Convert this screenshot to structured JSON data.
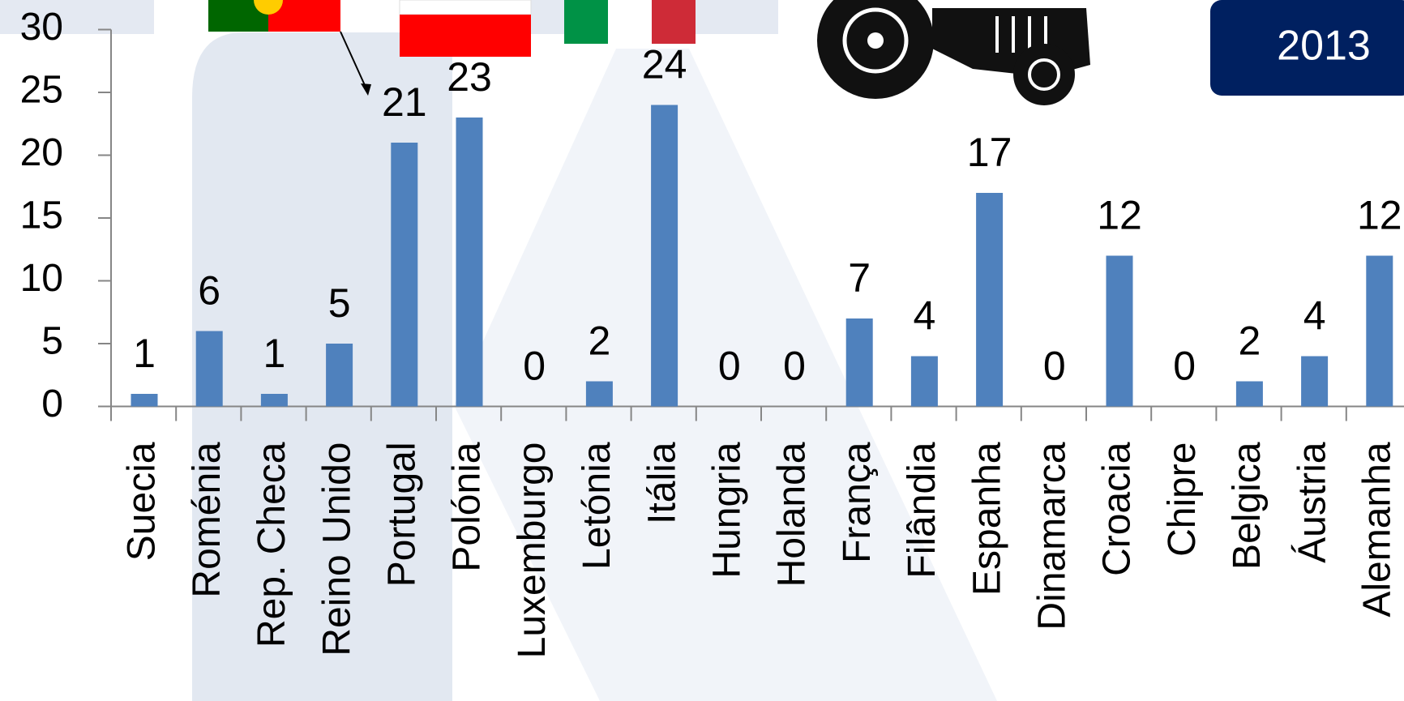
{
  "chart_data": {
    "type": "bar",
    "title": "2013",
    "categories": [
      "Suecia",
      "Roménia",
      "Rep. Checa",
      "Reino Unido",
      "Portugal",
      "Polónia",
      "Luxemburgo",
      "Letónia",
      "Itália",
      "Hungria",
      "Holanda",
      "França",
      "Filândia",
      "Espanha",
      "Dinamarca",
      "Croacia",
      "Chipre",
      "Belgica",
      "Áustria",
      "Alemanha"
    ],
    "values": [
      1,
      6,
      1,
      5,
      21,
      23,
      0,
      2,
      24,
      0,
      0,
      7,
      4,
      17,
      0,
      12,
      0,
      2,
      4,
      12
    ],
    "color": "#4f81bd",
    "ylim": [
      0,
      30
    ],
    "yticks": [
      0,
      5,
      10,
      15,
      20,
      25,
      30
    ]
  }
}
